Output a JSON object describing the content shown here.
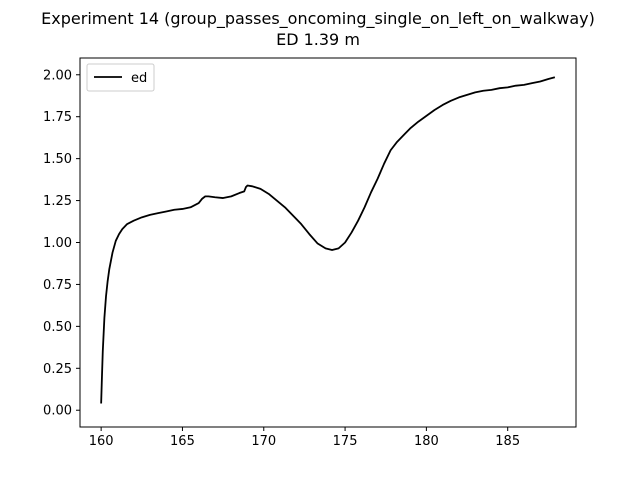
{
  "chart_data": {
    "type": "line",
    "title": "Experiment 14 (group_passes_oncoming_single_on_left_on_walkway)",
    "subtitle": "ED 1.39 m",
    "xlabel": "",
    "ylabel": "",
    "xlim": [
      158.7,
      189.2
    ],
    "ylim": [
      -0.1,
      2.1
    ],
    "xticks": [
      160,
      165,
      170,
      175,
      180,
      185
    ],
    "yticks": [
      0.0,
      0.25,
      0.5,
      0.75,
      1.0,
      1.25,
      1.5,
      1.75,
      2.0
    ],
    "ytick_labels": [
      "0.00",
      "0.25",
      "0.50",
      "0.75",
      "1.00",
      "1.25",
      "1.50",
      "1.75",
      "2.00"
    ],
    "grid": false,
    "legend": "top-left",
    "series": [
      {
        "name": "ed",
        "color": "#000000",
        "x": [
          160.0,
          160.05,
          160.1,
          160.2,
          160.3,
          160.4,
          160.5,
          160.7,
          160.9,
          161.1,
          161.3,
          161.6,
          162.0,
          162.5,
          163.0,
          163.5,
          164.0,
          164.5,
          165.0,
          165.5,
          166.0,
          166.2,
          166.4,
          166.6,
          167.0,
          167.5,
          168.0,
          168.5,
          168.8,
          168.9,
          169.0,
          169.3,
          169.8,
          170.3,
          170.8,
          171.3,
          171.8,
          172.3,
          172.8,
          173.3,
          173.8,
          174.2,
          174.6,
          175.0,
          175.4,
          175.8,
          176.2,
          176.6,
          177.0,
          177.4,
          177.8,
          178.2,
          178.6,
          179.0,
          179.5,
          180.0,
          180.5,
          181.0,
          181.5,
          182.0,
          182.5,
          183.0,
          183.5,
          184.0,
          184.5,
          185.0,
          185.5,
          186.0,
          186.5,
          187.0,
          187.5,
          187.9
        ],
        "y": [
          0.04,
          0.2,
          0.35,
          0.55,
          0.68,
          0.77,
          0.84,
          0.94,
          1.01,
          1.05,
          1.08,
          1.11,
          1.13,
          1.15,
          1.165,
          1.175,
          1.185,
          1.195,
          1.2,
          1.21,
          1.235,
          1.26,
          1.275,
          1.275,
          1.27,
          1.265,
          1.275,
          1.295,
          1.305,
          1.33,
          1.34,
          1.335,
          1.32,
          1.29,
          1.25,
          1.21,
          1.16,
          1.11,
          1.05,
          0.995,
          0.965,
          0.955,
          0.965,
          1.0,
          1.06,
          1.13,
          1.21,
          1.3,
          1.38,
          1.47,
          1.55,
          1.6,
          1.64,
          1.68,
          1.72,
          1.755,
          1.79,
          1.82,
          1.845,
          1.865,
          1.88,
          1.895,
          1.905,
          1.91,
          1.92,
          1.925,
          1.935,
          1.94,
          1.95,
          1.96,
          1.975,
          1.985
        ]
      }
    ]
  }
}
